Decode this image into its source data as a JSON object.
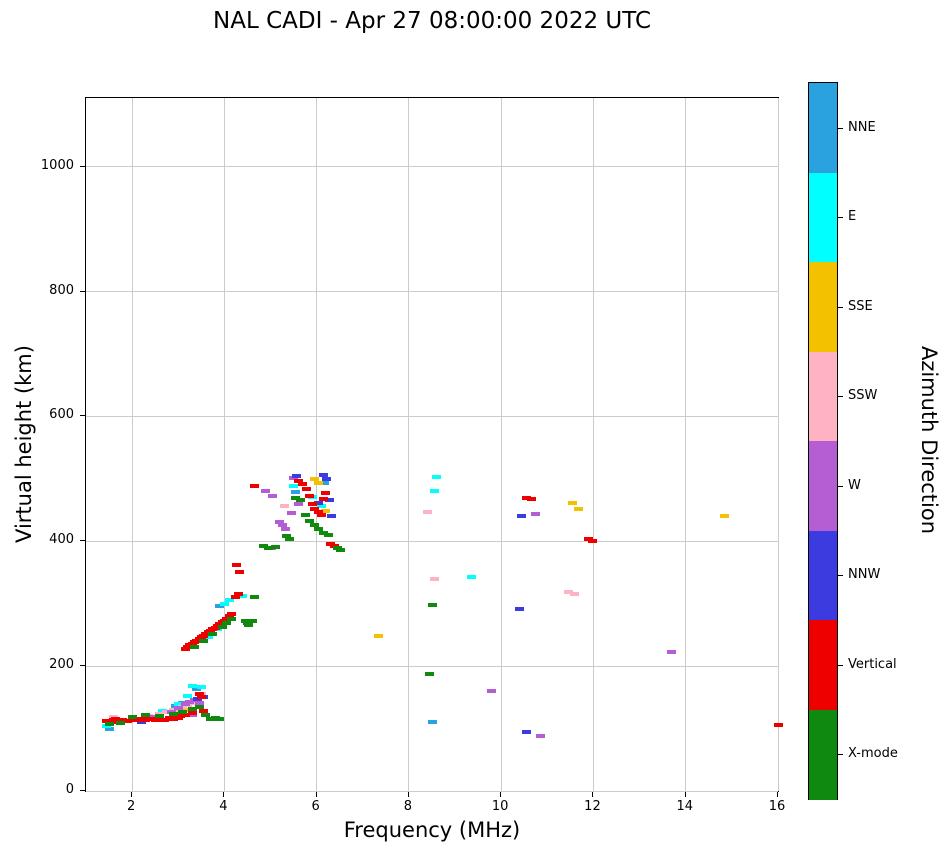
{
  "title": "NAL CADI - Apr 27 08:00:00 2022 UTC",
  "axes": {
    "xlabel": "Frequency (MHz)",
    "ylabel": "Virtual height (km)",
    "x_ticks": [
      2,
      4,
      6,
      8,
      10,
      12,
      14,
      16
    ],
    "y_ticks": [
      0,
      200,
      400,
      600,
      800,
      1000
    ],
    "xlim": [
      1,
      16
    ],
    "ylim": [
      0,
      1110
    ],
    "grid": true
  },
  "colorbar": {
    "label": "Azimuth Direction",
    "entries": [
      {
        "label": "NNE",
        "color": "#2BA2E0"
      },
      {
        "label": "E",
        "color": "#00FFFF"
      },
      {
        "label": "SSE",
        "color": "#F2C200"
      },
      {
        "label": "SSW",
        "color": "#FFB3C2"
      },
      {
        "label": "W",
        "color": "#B55ED3"
      },
      {
        "label": "NNW",
        "color": "#3B3BE0"
      },
      {
        "label": "Vertical",
        "color": "#EE0000"
      },
      {
        "label": "X-mode",
        "color": "#0F8A0F"
      }
    ]
  },
  "chart_data": {
    "type": "scatter",
    "title": "NAL CADI - Apr 27 08:00:00 2022 UTC",
    "xlabel": "Frequency (MHz)",
    "ylabel": "Virtual height (km)",
    "xlim": [
      1,
      16
    ],
    "ylim": [
      0,
      1110
    ],
    "grid": true,
    "legend_position": "right-colorbar",
    "series": [
      {
        "name": "NNE",
        "color": "#2BA2E0",
        "points": [
          [
            1.5,
            100
          ],
          [
            2.95,
            136
          ],
          [
            3.1,
            141
          ],
          [
            3.4,
            163
          ],
          [
            3.9,
            296
          ],
          [
            4.0,
            299
          ],
          [
            5.55,
            479
          ],
          [
            6.18,
            493
          ],
          [
            8.5,
            110
          ]
        ]
      },
      {
        "name": "E",
        "color": "#00FFFF",
        "points": [
          [
            1.45,
            104
          ],
          [
            2.65,
            128
          ],
          [
            3.0,
            139
          ],
          [
            3.2,
            152
          ],
          [
            3.3,
            168
          ],
          [
            3.5,
            166
          ],
          [
            3.65,
            246
          ],
          [
            3.85,
            259
          ],
          [
            4.0,
            300
          ],
          [
            4.1,
            306
          ],
          [
            4.4,
            312
          ],
          [
            5.5,
            489
          ],
          [
            5.9,
            471
          ],
          [
            6.1,
            456
          ],
          [
            8.6,
            503
          ],
          [
            8.55,
            481
          ],
          [
            9.35,
            342
          ]
        ]
      },
      {
        "name": "SSE",
        "color": "#F2C200",
        "points": [
          [
            2.5,
            115
          ],
          [
            3.2,
            129
          ],
          [
            5.95,
            499
          ],
          [
            6.05,
            493
          ],
          [
            6.2,
            449
          ],
          [
            7.35,
            248
          ],
          [
            11.55,
            462
          ],
          [
            11.67,
            451
          ],
          [
            14.85,
            440
          ]
        ]
      },
      {
        "name": "SSW",
        "color": "#FFB3C2",
        "points": [
          [
            1.6,
            118
          ],
          [
            2.35,
            120
          ],
          [
            2.6,
            123
          ],
          [
            2.75,
            126
          ],
          [
            2.9,
            129
          ],
          [
            3.0,
            131
          ],
          [
            3.1,
            134
          ],
          [
            3.2,
            137
          ],
          [
            3.35,
            141
          ],
          [
            3.5,
            156
          ],
          [
            5.3,
            456
          ],
          [
            8.4,
            447
          ],
          [
            8.55,
            340
          ],
          [
            11.45,
            318
          ],
          [
            11.58,
            316
          ]
        ]
      },
      {
        "name": "W",
        "color": "#B55ED3",
        "points": [
          [
            2.45,
            118
          ],
          [
            2.85,
            127
          ],
          [
            3.0,
            133
          ],
          [
            3.15,
            139
          ],
          [
            3.25,
            143
          ],
          [
            3.35,
            146
          ],
          [
            3.45,
            141
          ],
          [
            3.3,
            121
          ],
          [
            4.9,
            481
          ],
          [
            5.05,
            473
          ],
          [
            5.5,
            501
          ],
          [
            5.2,
            431
          ],
          [
            5.27,
            426
          ],
          [
            5.33,
            419
          ],
          [
            5.45,
            446
          ],
          [
            5.6,
            459
          ],
          [
            5.02,
            389
          ],
          [
            9.8,
            160
          ],
          [
            10.75,
            443
          ],
          [
            10.85,
            88
          ],
          [
            13.7,
            222
          ]
        ]
      },
      {
        "name": "NNW",
        "color": "#3B3BE0",
        "points": [
          [
            2.2,
            110
          ],
          [
            3.42,
            148
          ],
          [
            3.55,
            151
          ],
          [
            4.05,
            271
          ],
          [
            4.5,
            269
          ],
          [
            5.57,
            505
          ],
          [
            6.15,
            506
          ],
          [
            6.22,
            500
          ],
          [
            6.27,
            466
          ],
          [
            6.32,
            440
          ],
          [
            6.05,
            461
          ],
          [
            10.45,
            440
          ],
          [
            10.4,
            291
          ],
          [
            10.55,
            95
          ]
        ]
      },
      {
        "name": "Vertical",
        "color": "#EE0000",
        "points": [
          [
            1.45,
            112
          ],
          [
            1.5,
            110
          ],
          [
            1.6,
            113
          ],
          [
            1.65,
            116
          ],
          [
            1.7,
            111
          ],
          [
            1.8,
            114
          ],
          [
            1.9,
            112
          ],
          [
            2.0,
            115
          ],
          [
            2.1,
            113
          ],
          [
            2.2,
            116
          ],
          [
            2.3,
            113
          ],
          [
            2.4,
            115
          ],
          [
            2.5,
            113
          ],
          [
            2.6,
            116
          ],
          [
            2.7,
            114
          ],
          [
            2.8,
            117
          ],
          [
            2.9,
            115
          ],
          [
            3.0,
            117
          ],
          [
            3.05,
            120
          ],
          [
            3.15,
            122
          ],
          [
            3.3,
            125
          ],
          [
            3.45,
            155
          ],
          [
            3.5,
            150
          ],
          [
            3.55,
            128
          ],
          [
            3.15,
            228
          ],
          [
            3.2,
            231
          ],
          [
            3.25,
            234
          ],
          [
            3.3,
            236
          ],
          [
            3.35,
            239
          ],
          [
            3.4,
            241
          ],
          [
            3.45,
            244
          ],
          [
            3.5,
            246
          ],
          [
            3.55,
            249
          ],
          [
            3.6,
            251
          ],
          [
            3.65,
            254
          ],
          [
            3.7,
            256
          ],
          [
            3.75,
            259
          ],
          [
            3.8,
            261
          ],
          [
            3.85,
            264
          ],
          [
            3.9,
            267
          ],
          [
            3.95,
            270
          ],
          [
            4.0,
            272
          ],
          [
            4.05,
            276
          ],
          [
            4.1,
            280
          ],
          [
            4.15,
            284
          ],
          [
            4.25,
            310
          ],
          [
            4.3,
            315
          ],
          [
            4.27,
            362
          ],
          [
            4.32,
            350
          ],
          [
            4.65,
            488
          ],
          [
            5.6,
            497
          ],
          [
            5.7,
            492
          ],
          [
            5.78,
            483
          ],
          [
            5.85,
            472
          ],
          [
            5.9,
            460
          ],
          [
            5.95,
            452
          ],
          [
            6.05,
            447
          ],
          [
            6.1,
            442
          ],
          [
            6.15,
            468
          ],
          [
            6.2,
            478
          ],
          [
            6.3,
            396
          ],
          [
            6.38,
            393
          ],
          [
            10.55,
            470
          ],
          [
            10.65,
            468
          ],
          [
            11.9,
            403
          ],
          [
            11.97,
            400
          ],
          [
            16.0,
            105
          ]
        ]
      },
      {
        "name": "X-mode",
        "color": "#0F8A0F",
        "points": [
          [
            1.5,
            108
          ],
          [
            1.75,
            109
          ],
          [
            2.0,
            118
          ],
          [
            2.3,
            121
          ],
          [
            2.6,
            120
          ],
          [
            2.9,
            123
          ],
          [
            3.1,
            126
          ],
          [
            3.3,
            131
          ],
          [
            3.45,
            134
          ],
          [
            3.6,
            121
          ],
          [
            3.7,
            116
          ],
          [
            3.8,
            117
          ],
          [
            3.9,
            115
          ],
          [
            3.35,
            231
          ],
          [
            3.55,
            241
          ],
          [
            3.75,
            251
          ],
          [
            3.95,
            263
          ],
          [
            4.05,
            269
          ],
          [
            4.15,
            276
          ],
          [
            4.45,
            272
          ],
          [
            4.52,
            266
          ],
          [
            4.6,
            273
          ],
          [
            4.65,
            310
          ],
          [
            4.85,
            392
          ],
          [
            4.95,
            390
          ],
          [
            5.1,
            391
          ],
          [
            5.35,
            409
          ],
          [
            5.42,
            403
          ],
          [
            5.55,
            470
          ],
          [
            5.65,
            466
          ],
          [
            5.75,
            442
          ],
          [
            5.85,
            432
          ],
          [
            5.95,
            426
          ],
          [
            6.05,
            420
          ],
          [
            6.15,
            414
          ],
          [
            6.25,
            410
          ],
          [
            6.45,
            389
          ],
          [
            6.52,
            386
          ],
          [
            8.5,
            298
          ],
          [
            8.45,
            187
          ]
        ]
      }
    ]
  }
}
